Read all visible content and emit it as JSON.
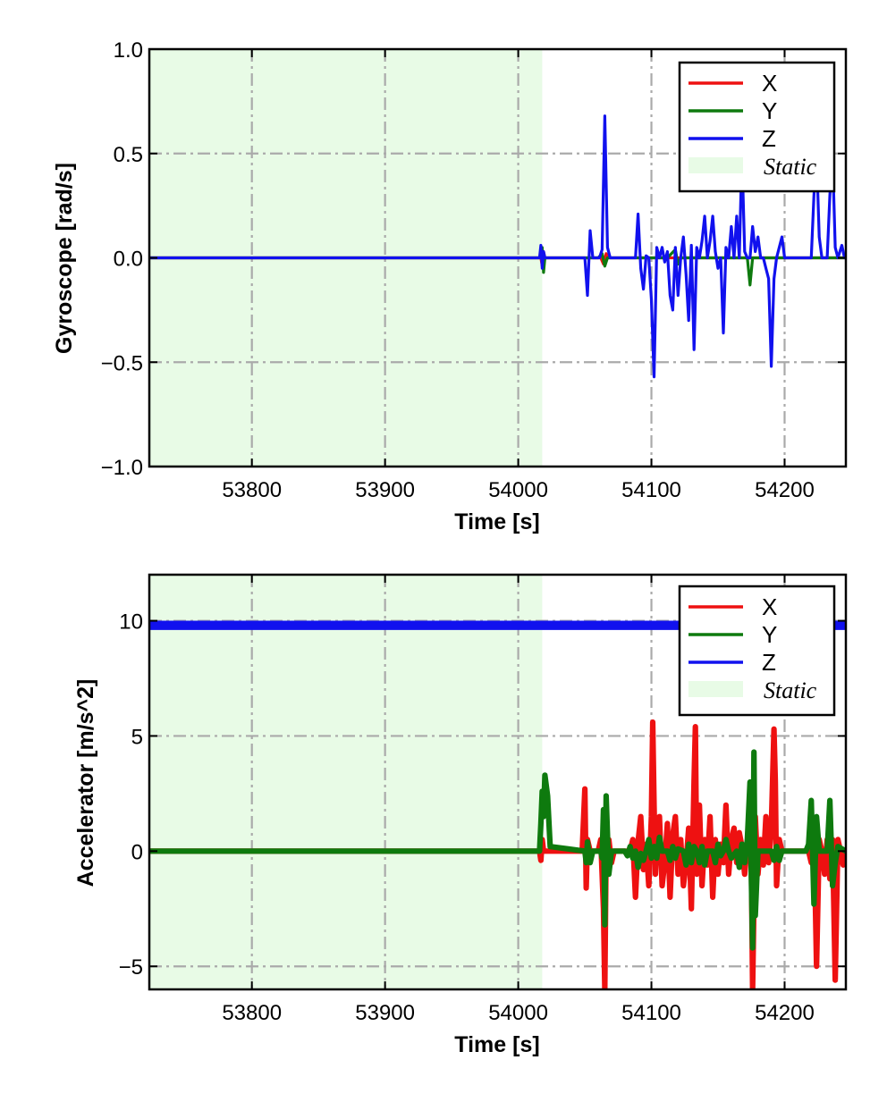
{
  "chart_data": [
    {
      "type": "line",
      "xlabel": "Time [s]",
      "ylabel": "Gyroscope [rad/s]",
      "xlim": [
        53723,
        54246
      ],
      "ylim": [
        -1.0,
        1.0
      ],
      "x_ticks": [
        53800,
        53900,
        54000,
        54100,
        54200
      ],
      "x_tick_labels": [
        "53800",
        "53900",
        "54000",
        "54100",
        "54200"
      ],
      "y_ticks": [
        1.0,
        0.5,
        0.0,
        -0.5,
        -1.0
      ],
      "y_tick_labels": [
        "1.0",
        "0.5",
        "0.0",
        "−0.5",
        "−1.0"
      ],
      "grid": true,
      "legend_position": "top-right",
      "shaded_region": {
        "label": "Static",
        "x": [
          53723,
          54018
        ],
        "color": "#e8fbe6"
      },
      "series": [
        {
          "name": "X",
          "color": "#ee1111",
          "x": [
            53723,
            54017,
            54018,
            54019,
            54020,
            54062,
            54064,
            54066,
            54068,
            54246
          ],
          "y": [
            0,
            0,
            -0.04,
            0.03,
            0,
            0,
            -0.03,
            0.02,
            0,
            0
          ]
        },
        {
          "name": "Y",
          "color": "#0e7a0e",
          "x": [
            53723,
            54017,
            54018,
            54019,
            54020,
            54060,
            54063,
            54065,
            54067,
            54112,
            54118,
            54120,
            54122,
            54172,
            54174,
            54176,
            54246
          ],
          "y": [
            0,
            0,
            0.05,
            -0.07,
            0,
            0,
            0.02,
            -0.04,
            0,
            0,
            0.04,
            -0.03,
            0,
            0,
            -0.13,
            0,
            0
          ]
        },
        {
          "name": "Z",
          "color": "#1111ee",
          "x": [
            53723,
            54016,
            54017,
            54018,
            54019,
            54020,
            54050,
            54052,
            54054,
            54056,
            54061,
            54063,
            54065,
            54067,
            54069,
            54088,
            54090,
            54092,
            54094,
            54096,
            54098,
            54100,
            54102,
            54104,
            54106,
            54108,
            54110,
            54112,
            54114,
            54116,
            54118,
            54120,
            54122,
            54124,
            54126,
            54128,
            54130,
            54132,
            54134,
            54136,
            54138,
            54140,
            54142,
            54144,
            54146,
            54148,
            54150,
            54152,
            54154,
            54156,
            54158,
            54160,
            54162,
            54164,
            54166,
            54168,
            54170,
            54172,
            54174,
            54176,
            54178,
            54180,
            54182,
            54184,
            54186,
            54188,
            54190,
            54192,
            54194,
            54196,
            54198,
            54200,
            54202,
            54220,
            54222,
            54224,
            54226,
            54228,
            54232,
            54234,
            54236,
            54238,
            54240,
            54243,
            54245,
            54246
          ],
          "y": [
            0,
            0,
            0.06,
            -0.05,
            0.03,
            0,
            0,
            -0.18,
            0.13,
            0,
            0,
            0.04,
            0.68,
            0.05,
            0,
            0,
            0.21,
            -0.05,
            -0.15,
            0.01,
            0,
            -0.2,
            -0.57,
            0.05,
            0,
            0.05,
            -0.02,
            0.03,
            -0.18,
            -0.25,
            0.05,
            -0.18,
            0,
            0.1,
            -0.08,
            -0.3,
            0.06,
            -0.44,
            0.05,
            0,
            0.08,
            0.2,
            0,
            0.08,
            0.2,
            0.03,
            -0.05,
            0,
            -0.36,
            0.05,
            0,
            0.15,
            0,
            0.2,
            0,
            0.5,
            0.03,
            0,
            0,
            0.15,
            0.03,
            0.1,
            0,
            0,
            -0.05,
            -0.1,
            -0.52,
            -0.1,
            0,
            0.05,
            0.1,
            0,
            0,
            0,
            0.3,
            0.5,
            0.1,
            0,
            0,
            0.3,
            0.5,
            0.05,
            0,
            0.06,
            0,
            0
          ]
        }
      ]
    },
    {
      "type": "line",
      "xlabel": "Time [s]",
      "ylabel": "Accelerator [m/s^2]",
      "xlim": [
        53723,
        54246
      ],
      "ylim": [
        -6,
        12
      ],
      "x_ticks": [
        53800,
        53900,
        54000,
        54100,
        54200
      ],
      "x_tick_labels": [
        "53800",
        "53900",
        "54000",
        "54100",
        "54200"
      ],
      "y_ticks": [
        10,
        5,
        0,
        -5
      ],
      "y_tick_labels": [
        "10",
        "5",
        "0",
        "−5"
      ],
      "grid": true,
      "legend_position": "top-right",
      "shaded_region": {
        "label": "Static",
        "x": [
          53723,
          54018
        ],
        "color": "#e8fbe6"
      },
      "series": [
        {
          "name": "X",
          "color": "#ee1111",
          "x": [
            53723,
            54016,
            54017,
            54018,
            54019,
            54048,
            54050,
            54051,
            54052,
            54054,
            54060,
            54062,
            54064,
            54065,
            54066,
            54068,
            54070,
            54072,
            54074,
            54076,
            54078,
            54080,
            54082,
            54084,
            54086,
            54088,
            54090,
            54092,
            54094,
            54096,
            54098,
            54100,
            54101,
            54102,
            54103,
            54104,
            54106,
            54108,
            54110,
            54112,
            54114,
            54116,
            54118,
            54120,
            54122,
            54124,
            54126,
            54128,
            54130,
            54132,
            54133,
            54134,
            54136,
            54138,
            54140,
            54142,
            54144,
            54146,
            54148,
            54150,
            54152,
            54154,
            54156,
            54158,
            54160,
            54162,
            54164,
            54166,
            54168,
            54170,
            54172,
            54174,
            54175,
            54176,
            54178,
            54180,
            54182,
            54184,
            54186,
            54188,
            54190,
            54192,
            54193,
            54194,
            54196,
            54198,
            54200,
            54218,
            54220,
            54222,
            54224,
            54226,
            54228,
            54230,
            54232,
            54234,
            54236,
            54238,
            54240,
            54242,
            54244,
            54246
          ],
          "y": [
            0,
            0,
            -0.4,
            0.5,
            0,
            0,
            2.7,
            -1.6,
            0.5,
            0,
            0,
            0.5,
            -2.5,
            -6,
            0.3,
            0.5,
            -0.5,
            0,
            0,
            0,
            0,
            0,
            0,
            0,
            0.5,
            -2,
            0.4,
            1.5,
            -0.8,
            0.3,
            -1.5,
            1.5,
            5.6,
            2,
            -1,
            0.5,
            1.5,
            -1.5,
            -0.5,
            1.2,
            -2,
            0.7,
            1.5,
            -1,
            0.5,
            -1.5,
            -0.5,
            1,
            -2.5,
            3,
            5.4,
            -1,
            2,
            -1.5,
            0.5,
            -0.6,
            1.5,
            -2,
            0.5,
            -1,
            0.3,
            -0.5,
            2,
            -1,
            0.5,
            1,
            -0.5,
            0.8,
            0.2,
            -1,
            0.3,
            2.5,
            0,
            -6,
            1.5,
            -1,
            0.5,
            -0.6,
            1.5,
            -0.5,
            1,
            5.3,
            3,
            -1.5,
            0.5,
            0,
            0,
            0,
            -0.5,
            1,
            -5,
            0.5,
            0,
            -1,
            0.5,
            -1.2,
            0.5,
            -5.6,
            0.5,
            0,
            -0.6,
            0
          ],
          "band": 0.12
        },
        {
          "name": "Y",
          "color": "#0e7a0e",
          "x": [
            53723,
            54016,
            54017,
            54018,
            54019,
            54020,
            54022,
            54024,
            54050,
            54051,
            54052,
            54054,
            54056,
            54062,
            54063,
            54064,
            54065,
            54066,
            54068,
            54070,
            54080,
            54082,
            54084,
            54086,
            54088,
            54090,
            54092,
            54094,
            54096,
            54098,
            54100,
            54102,
            54104,
            54106,
            54108,
            54112,
            54114,
            54116,
            54118,
            54120,
            54124,
            54126,
            54128,
            54130,
            54132,
            54134,
            54136,
            54138,
            54140,
            54142,
            54146,
            54148,
            54150,
            54152,
            54154,
            54156,
            54158,
            54160,
            54164,
            54166,
            54168,
            54170,
            54172,
            54174,
            54175,
            54176,
            54177,
            54178,
            54180,
            54190,
            54192,
            54194,
            54196,
            54198,
            54216,
            54218,
            54220,
            54222,
            54224,
            54226,
            54232,
            54234,
            54236,
            54238,
            54240,
            54246
          ],
          "y": [
            0,
            0,
            1.2,
            2.6,
            1.5,
            3.3,
            2.4,
            0.2,
            0,
            -0.5,
            0.4,
            -0.5,
            0,
            0,
            -0.3,
            1.8,
            -3.2,
            2.4,
            -1,
            0,
            0,
            -0.2,
            0.2,
            -0.3,
            0,
            -0.7,
            -0.1,
            -0.4,
            0,
            0.5,
            -0.3,
            0.2,
            -0.3,
            0.6,
            0,
            0,
            -0.4,
            0.2,
            -0.3,
            0.1,
            0,
            -0.6,
            0.3,
            -0.5,
            0.2,
            0,
            -0.5,
            0.2,
            -0.6,
            0,
            0,
            -0.5,
            0.3,
            -0.2,
            0,
            0.5,
            0,
            -0.3,
            0,
            -0.7,
            0.3,
            -0.5,
            0.5,
            3,
            -1,
            -4.2,
            4.3,
            -2.8,
            0,
            0,
            -0.4,
            0.2,
            -0.4,
            0,
            0,
            0.3,
            2.2,
            -2.3,
            1.5,
            0,
            0,
            2.2,
            -1.5,
            -0.5,
            0.2,
            0
          ],
          "band": 0.12
        },
        {
          "name": "Z",
          "color": "#1111ee",
          "x": [
            53723,
            54246
          ],
          "y": [
            9.8,
            9.8
          ],
          "band": 0.2
        }
      ]
    }
  ]
}
